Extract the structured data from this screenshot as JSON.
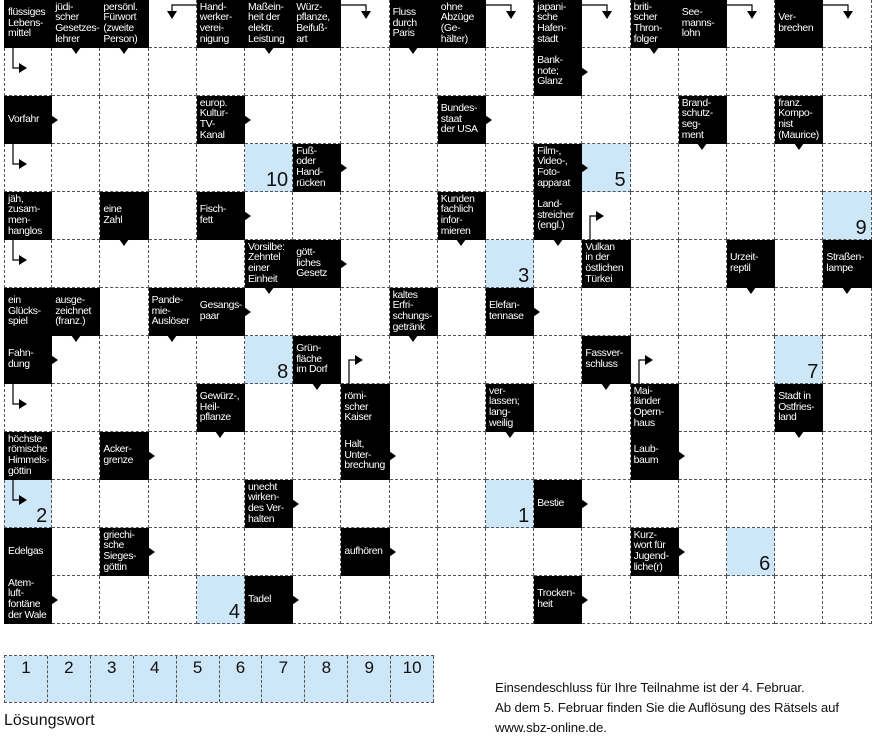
{
  "colors": {
    "clue_background": "#000000",
    "solution_cell": "#cde6f8",
    "grid_line": "#555555"
  },
  "grid": {
    "rows": [
      [
        {
          "clue": "flüssiges\nLebens-\nmittel"
        },
        {
          "clue": "jüdi-\nscher\nGesetzes-\nlehrer",
          "arrow": "down"
        },
        {
          "clue": "persönl.\nFürwort\n(zweite\nPerson)",
          "arrow": "down"
        },
        {
          "elbow": "from-right-down"
        },
        {
          "clue": "Hand-\nwerker-\nverei-\nnigung"
        },
        {
          "clue": "Maßein-\nheit der\nelektr.\nLeistung",
          "arrow": "down"
        },
        {
          "clue": "Würz-\npflanze,\nBeifuß-\nart"
        },
        {
          "elbow": "from-left-down"
        },
        {
          "clue": "Fluss\ndurch\nParis",
          "arrow": "down"
        },
        {
          "clue": "ohne\nAbzüge\n(Ge-\nhälter)"
        },
        {
          "elbow": "from-left-down"
        },
        {
          "clue": "japani-\nsche\nHafen-\nstadt"
        },
        {
          "elbow": "from-left-down"
        },
        {
          "clue": "briti-\nscher\nThron-\nfolger",
          "arrow": "down"
        },
        {
          "clue": "See-\nmanns-\nlohn"
        },
        {
          "elbow": "from-left-down"
        },
        {
          "clue": "Ver-\nbrechen"
        },
        {
          "elbow": "from-left-down"
        }
      ],
      [
        {
          "elbow": "from-top-right"
        },
        {},
        {},
        {},
        {},
        {},
        {},
        {},
        {},
        {},
        {},
        {
          "clue": "Bank-\nnote;\nGlanz",
          "arrow": "right"
        },
        {},
        {},
        {},
        {},
        {},
        {}
      ],
      [
        {
          "clue": "Vorfahr",
          "arrow": "right"
        },
        {},
        {},
        {},
        {
          "clue": "europ.\nKultur-\nTV-\nKanal",
          "arrow": "right"
        },
        {},
        {},
        {},
        {},
        {
          "clue": "Bundes-\nstaat\nder USA",
          "arrow": "right"
        },
        {},
        {},
        {},
        {},
        {
          "clue": "Brand-\nschutz-\nseg-\nment",
          "arrow": "down"
        },
        {},
        {
          "clue": "franz.\nKompo-\nnist\n(Maurice)",
          "arrow": "down"
        },
        {}
      ],
      [
        {
          "elbow": "from-top-right"
        },
        {},
        {},
        {},
        {},
        {
          "solution_number": "10"
        },
        {
          "clue": "Fuß-\noder\nHand-\nrücken",
          "arrow": "right"
        },
        {},
        {},
        {},
        {},
        {
          "clue": "Film-,\nVideo-,\nFoto-\napparat",
          "arrow": "right"
        },
        {
          "solution_number": "5"
        },
        {},
        {},
        {},
        {},
        {}
      ],
      [
        {
          "clue": "jäh,\nzusam-\nmen-\nhanglos"
        },
        {},
        {
          "clue": "eine\nZahl",
          "arrow": "down"
        },
        {},
        {
          "clue": "Fisch-\nfett",
          "arrow": "right"
        },
        {},
        {},
        {},
        {},
        {
          "clue": "Kunden\nfachlich\ninfor-\nmieren",
          "arrow": "down"
        },
        {},
        {
          "clue": "Land-\nstreicher\n(engl.)",
          "arrow": "down"
        },
        {
          "elbow": "from-bottom-right"
        },
        {},
        {},
        {},
        {},
        {
          "solution_number": "9"
        }
      ],
      [
        {
          "elbow": "from-top-right"
        },
        {},
        {},
        {},
        {},
        {
          "clue": "Vorsilbe:\nZehntel\neiner\nEinheit",
          "arrow": "down"
        },
        {
          "clue": "gött-\nliches\nGesetz",
          "arrow": "right"
        },
        {},
        {},
        {},
        {
          "solution_number": "3"
        },
        {},
        {
          "clue": "Vulkan\nin der\nöstlichen\nTürkei"
        },
        {},
        {},
        {
          "clue": "Urzeit-\nreptil",
          "arrow": "down"
        },
        {},
        {
          "clue": "Straßen-\nlampe",
          "arrow": "down"
        }
      ],
      [
        {
          "clue": "ein\nGlücks-\nspiel"
        },
        {
          "clue": "ausge-\nzeichnet\n(franz.)",
          "arrow": "down"
        },
        {},
        {
          "clue": "Pande-\nmie-\nAuslöser",
          "arrow": "down"
        },
        {
          "clue": "Gesangs-\npaar",
          "arrow": "right"
        },
        {},
        {},
        {},
        {
          "clue": "kaltes\nErfri-\nschungs-\ngetränk",
          "arrow": "down"
        },
        {},
        {
          "clue": "Elefan-\ntennase",
          "arrow": "right"
        },
        {},
        {},
        {},
        {},
        {},
        {},
        {}
      ],
      [
        {
          "clue": "Fahn-\ndung",
          "arrow": "right"
        },
        {},
        {},
        {},
        {},
        {
          "solution_number": "8"
        },
        {
          "clue": "Grün-\nfläche\nim Dorf",
          "arrow": "down"
        },
        {
          "elbow": "from-bottom-right"
        },
        {},
        {},
        {},
        {},
        {
          "clue": "Fassver-\nschluss",
          "arrow": "down"
        },
        {
          "elbow": "from-bottom-right"
        },
        {},
        {},
        {
          "solution_number": "7"
        },
        {}
      ],
      [
        {
          "elbow": "from-top-right"
        },
        {},
        {},
        {},
        {
          "clue": "Gewürz-,\nHeil-\npflanze",
          "arrow": "down"
        },
        {},
        {},
        {
          "clue": "römi-\nscher\nKaiser"
        },
        {},
        {},
        {
          "clue": "ver-\nlassen;\nlang-\nweilig",
          "arrow": "down"
        },
        {},
        {},
        {
          "clue": "Mai-\nländer\nOpern-\nhaus"
        },
        {},
        {},
        {
          "clue": "Stadt in\nOstfries-\nland",
          "arrow": "down"
        },
        {}
      ],
      [
        {
          "clue": "höchste\nrömische\nHimmels-\ngöttin"
        },
        {},
        {
          "clue": "Acker-\ngrenze",
          "arrow": "right"
        },
        {},
        {},
        {},
        {},
        {
          "clue": "Halt,\nUnter-\nbrechung",
          "arrow": "right"
        },
        {},
        {},
        {},
        {},
        {},
        {
          "clue": "Laub-\nbaum",
          "arrow": "right"
        },
        {},
        {},
        {},
        {}
      ],
      [
        {
          "solution_number": "2",
          "elbow": "from-top-right"
        },
        {},
        {},
        {},
        {},
        {
          "clue": "unecht\nwirken-\ndes Ver-\nhalten",
          "arrow": "right"
        },
        {},
        {},
        {},
        {},
        {
          "solution_number": "1"
        },
        {
          "clue": "Bestie",
          "arrow": "right"
        },
        {},
        {},
        {},
        {},
        {},
        {}
      ],
      [
        {
          "clue": "Edelgas"
        },
        {},
        {
          "clue": "griechi-\nsche\nSieges-\ngöttin",
          "arrow": "right"
        },
        {},
        {},
        {},
        {},
        {
          "clue": "aufhören",
          "arrow": "right"
        },
        {},
        {},
        {},
        {},
        {},
        {
          "clue": "Kurz-\nwort für\nJugend-\nliche(r)",
          "arrow": "right"
        },
        {},
        {
          "solution_number": "6"
        },
        {},
        {}
      ],
      [
        {
          "clue": "Atem-\nluft-\nfontäne\nder Wale",
          "arrow": "right"
        },
        {},
        {},
        {},
        {
          "solution_number": "4"
        },
        {
          "clue": "Tadel",
          "arrow": "right"
        },
        {},
        {},
        {},
        {},
        {},
        {
          "clue": "Trocken-\nheit",
          "arrow": "right"
        },
        {},
        {},
        {},
        {},
        {},
        {}
      ]
    ]
  },
  "solution_strip": {
    "numbers": [
      "1",
      "2",
      "3",
      "4",
      "5",
      "6",
      "7",
      "8",
      "9",
      "10"
    ],
    "label": "Lösungswort"
  },
  "info": {
    "line1": "Einsendeschluss für Ihre Teilnahme ist der 4. Februar.",
    "line2": "Ab dem 5. Februar finden Sie die Auflösung des Rätsels auf",
    "line3": "www.sbz-online.de."
  }
}
